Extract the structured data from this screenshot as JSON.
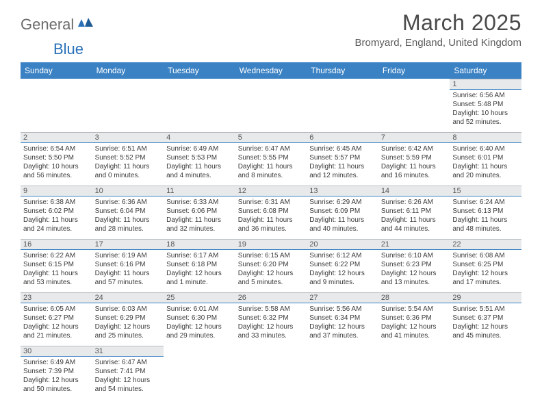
{
  "logo": {
    "text1": "General",
    "text2": "Blue"
  },
  "title": "March 2025",
  "subtitle": "Bromyard, England, United Kingdom",
  "colors": {
    "header_bg": "#3b82c4",
    "header_text": "#ffffff",
    "daynum_bg": "#e7e9eb",
    "daynum_border_top": "#b8bcc0",
    "daynum_border_bottom": "#3b82c4",
    "body_text": "#3a3a3a",
    "title_text": "#4a4a4a",
    "logo_gray": "#6b6b6b",
    "logo_blue": "#2970b8"
  },
  "typography": {
    "title_fontsize": 32,
    "subtitle_fontsize": 15,
    "header_fontsize": 12,
    "cell_fontsize": 10,
    "daynum_fontsize": 11
  },
  "weekdays": [
    "Sunday",
    "Monday",
    "Tuesday",
    "Wednesday",
    "Thursday",
    "Friday",
    "Saturday"
  ],
  "weeks": [
    [
      null,
      null,
      null,
      null,
      null,
      null,
      {
        "day": "1",
        "sunrise": "Sunrise: 6:56 AM",
        "sunset": "Sunset: 5:48 PM",
        "daylight": "Daylight: 10 hours and 52 minutes."
      }
    ],
    [
      {
        "day": "2",
        "sunrise": "Sunrise: 6:54 AM",
        "sunset": "Sunset: 5:50 PM",
        "daylight": "Daylight: 10 hours and 56 minutes."
      },
      {
        "day": "3",
        "sunrise": "Sunrise: 6:51 AM",
        "sunset": "Sunset: 5:52 PM",
        "daylight": "Daylight: 11 hours and 0 minutes."
      },
      {
        "day": "4",
        "sunrise": "Sunrise: 6:49 AM",
        "sunset": "Sunset: 5:53 PM",
        "daylight": "Daylight: 11 hours and 4 minutes."
      },
      {
        "day": "5",
        "sunrise": "Sunrise: 6:47 AM",
        "sunset": "Sunset: 5:55 PM",
        "daylight": "Daylight: 11 hours and 8 minutes."
      },
      {
        "day": "6",
        "sunrise": "Sunrise: 6:45 AM",
        "sunset": "Sunset: 5:57 PM",
        "daylight": "Daylight: 11 hours and 12 minutes."
      },
      {
        "day": "7",
        "sunrise": "Sunrise: 6:42 AM",
        "sunset": "Sunset: 5:59 PM",
        "daylight": "Daylight: 11 hours and 16 minutes."
      },
      {
        "day": "8",
        "sunrise": "Sunrise: 6:40 AM",
        "sunset": "Sunset: 6:01 PM",
        "daylight": "Daylight: 11 hours and 20 minutes."
      }
    ],
    [
      {
        "day": "9",
        "sunrise": "Sunrise: 6:38 AM",
        "sunset": "Sunset: 6:02 PM",
        "daylight": "Daylight: 11 hours and 24 minutes."
      },
      {
        "day": "10",
        "sunrise": "Sunrise: 6:36 AM",
        "sunset": "Sunset: 6:04 PM",
        "daylight": "Daylight: 11 hours and 28 minutes."
      },
      {
        "day": "11",
        "sunrise": "Sunrise: 6:33 AM",
        "sunset": "Sunset: 6:06 PM",
        "daylight": "Daylight: 11 hours and 32 minutes."
      },
      {
        "day": "12",
        "sunrise": "Sunrise: 6:31 AM",
        "sunset": "Sunset: 6:08 PM",
        "daylight": "Daylight: 11 hours and 36 minutes."
      },
      {
        "day": "13",
        "sunrise": "Sunrise: 6:29 AM",
        "sunset": "Sunset: 6:09 PM",
        "daylight": "Daylight: 11 hours and 40 minutes."
      },
      {
        "day": "14",
        "sunrise": "Sunrise: 6:26 AM",
        "sunset": "Sunset: 6:11 PM",
        "daylight": "Daylight: 11 hours and 44 minutes."
      },
      {
        "day": "15",
        "sunrise": "Sunrise: 6:24 AM",
        "sunset": "Sunset: 6:13 PM",
        "daylight": "Daylight: 11 hours and 48 minutes."
      }
    ],
    [
      {
        "day": "16",
        "sunrise": "Sunrise: 6:22 AM",
        "sunset": "Sunset: 6:15 PM",
        "daylight": "Daylight: 11 hours and 53 minutes."
      },
      {
        "day": "17",
        "sunrise": "Sunrise: 6:19 AM",
        "sunset": "Sunset: 6:16 PM",
        "daylight": "Daylight: 11 hours and 57 minutes."
      },
      {
        "day": "18",
        "sunrise": "Sunrise: 6:17 AM",
        "sunset": "Sunset: 6:18 PM",
        "daylight": "Daylight: 12 hours and 1 minute."
      },
      {
        "day": "19",
        "sunrise": "Sunrise: 6:15 AM",
        "sunset": "Sunset: 6:20 PM",
        "daylight": "Daylight: 12 hours and 5 minutes."
      },
      {
        "day": "20",
        "sunrise": "Sunrise: 6:12 AM",
        "sunset": "Sunset: 6:22 PM",
        "daylight": "Daylight: 12 hours and 9 minutes."
      },
      {
        "day": "21",
        "sunrise": "Sunrise: 6:10 AM",
        "sunset": "Sunset: 6:23 PM",
        "daylight": "Daylight: 12 hours and 13 minutes."
      },
      {
        "day": "22",
        "sunrise": "Sunrise: 6:08 AM",
        "sunset": "Sunset: 6:25 PM",
        "daylight": "Daylight: 12 hours and 17 minutes."
      }
    ],
    [
      {
        "day": "23",
        "sunrise": "Sunrise: 6:05 AM",
        "sunset": "Sunset: 6:27 PM",
        "daylight": "Daylight: 12 hours and 21 minutes."
      },
      {
        "day": "24",
        "sunrise": "Sunrise: 6:03 AM",
        "sunset": "Sunset: 6:29 PM",
        "daylight": "Daylight: 12 hours and 25 minutes."
      },
      {
        "day": "25",
        "sunrise": "Sunrise: 6:01 AM",
        "sunset": "Sunset: 6:30 PM",
        "daylight": "Daylight: 12 hours and 29 minutes."
      },
      {
        "day": "26",
        "sunrise": "Sunrise: 5:58 AM",
        "sunset": "Sunset: 6:32 PM",
        "daylight": "Daylight: 12 hours and 33 minutes."
      },
      {
        "day": "27",
        "sunrise": "Sunrise: 5:56 AM",
        "sunset": "Sunset: 6:34 PM",
        "daylight": "Daylight: 12 hours and 37 minutes."
      },
      {
        "day": "28",
        "sunrise": "Sunrise: 5:54 AM",
        "sunset": "Sunset: 6:36 PM",
        "daylight": "Daylight: 12 hours and 41 minutes."
      },
      {
        "day": "29",
        "sunrise": "Sunrise: 5:51 AM",
        "sunset": "Sunset: 6:37 PM",
        "daylight": "Daylight: 12 hours and 45 minutes."
      }
    ],
    [
      {
        "day": "30",
        "sunrise": "Sunrise: 6:49 AM",
        "sunset": "Sunset: 7:39 PM",
        "daylight": "Daylight: 12 hours and 50 minutes."
      },
      {
        "day": "31",
        "sunrise": "Sunrise: 6:47 AM",
        "sunset": "Sunset: 7:41 PM",
        "daylight": "Daylight: 12 hours and 54 minutes."
      },
      null,
      null,
      null,
      null,
      null
    ]
  ]
}
